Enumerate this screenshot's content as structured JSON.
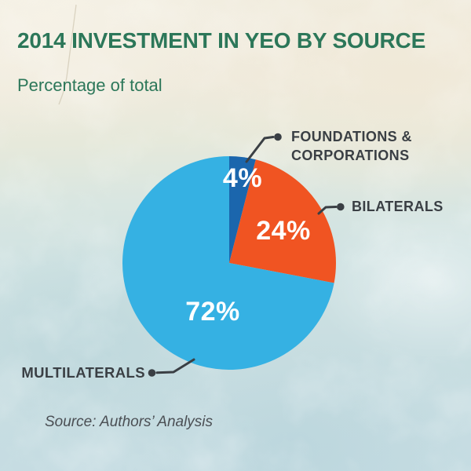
{
  "page": {
    "title": "2014 INVESTMENT IN YEO BY SOURCE",
    "subtitle": "Percentage of total",
    "source_note": "Source: Authors’ Analysis"
  },
  "chart_data": {
    "type": "pie",
    "title": "2014 INVESTMENT IN YEO BY SOURCE",
    "subtitle": "Percentage of total",
    "unit": "percent of total",
    "start_angle_deg": 0,
    "direction": "clockwise",
    "labels_style": "callout-with-dot-leaders",
    "legend_position": "none",
    "slices": [
      {
        "label": "FOUNDATIONS & CORPORATIONS",
        "value": 4,
        "value_label": "4%",
        "color": "#1b66ad"
      },
      {
        "label": "BILATERALS",
        "value": 24,
        "value_label": "24%",
        "color": "#f05422"
      },
      {
        "label": "MULTILATERALS",
        "value": 72,
        "value_label": "72%",
        "color": "#35b1e3"
      }
    ],
    "source": "Source: Authors’ Analysis"
  },
  "colors": {
    "heading_green": "#2c7759",
    "callout_charcoal": "#3a3f44",
    "source_gray": "#4b4f54",
    "percent_label_white": "#ffffff",
    "background_cream": "#f2eee1",
    "background_blue": "#c6dde2"
  }
}
